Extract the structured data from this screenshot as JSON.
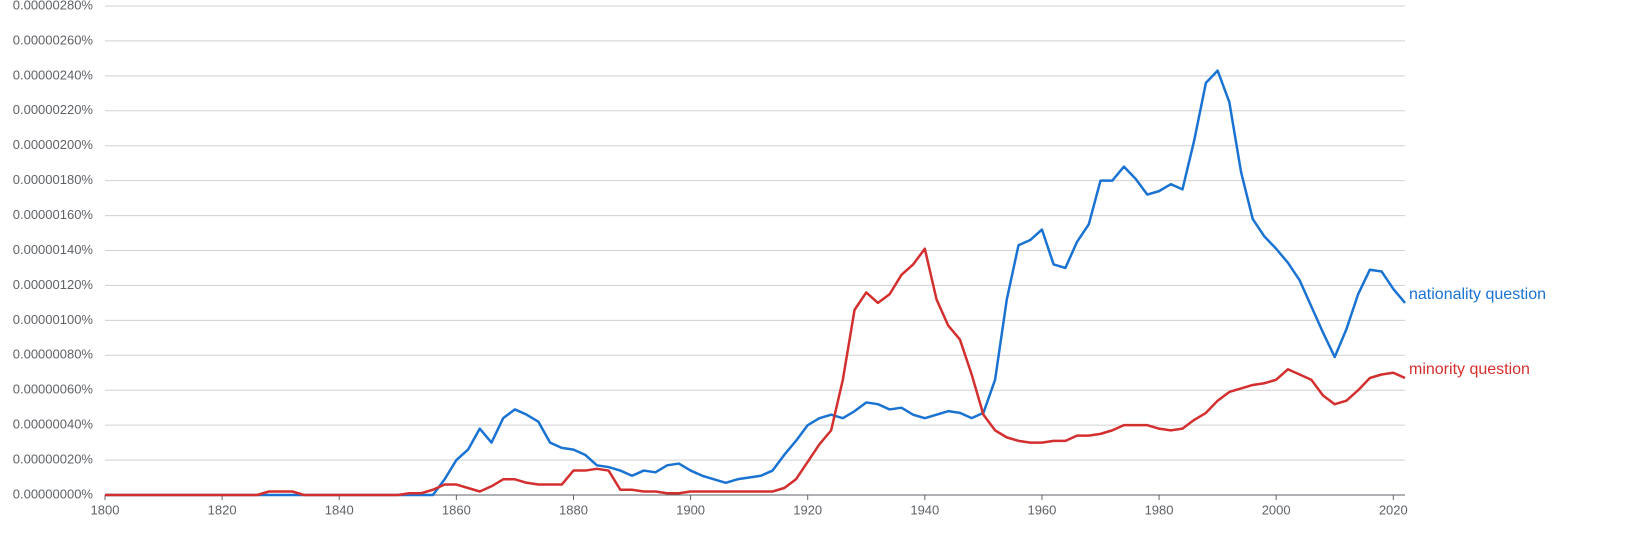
{
  "chart_data": {
    "type": "line",
    "x": [
      1800,
      1802,
      1804,
      1806,
      1808,
      1810,
      1812,
      1814,
      1816,
      1818,
      1820,
      1822,
      1824,
      1826,
      1828,
      1830,
      1832,
      1834,
      1836,
      1838,
      1840,
      1842,
      1844,
      1846,
      1848,
      1850,
      1852,
      1854,
      1856,
      1858,
      1860,
      1862,
      1864,
      1866,
      1868,
      1870,
      1872,
      1874,
      1876,
      1878,
      1880,
      1882,
      1884,
      1886,
      1888,
      1890,
      1892,
      1894,
      1896,
      1898,
      1900,
      1902,
      1904,
      1906,
      1908,
      1910,
      1912,
      1914,
      1916,
      1918,
      1920,
      1922,
      1924,
      1926,
      1928,
      1930,
      1932,
      1934,
      1936,
      1938,
      1940,
      1942,
      1944,
      1946,
      1948,
      1950,
      1952,
      1954,
      1956,
      1958,
      1960,
      1962,
      1964,
      1966,
      1968,
      1970,
      1972,
      1974,
      1976,
      1978,
      1980,
      1982,
      1984,
      1986,
      1988,
      1990,
      1992,
      1994,
      1996,
      1998,
      2000,
      2002,
      2004,
      2006,
      2008,
      2010,
      2012,
      2014,
      2016,
      2018,
      2020,
      2022
    ],
    "series": [
      {
        "name": "nationality question",
        "color": "#1a73d2",
        "values": [
          0,
          0,
          0,
          0,
          0,
          0,
          0,
          0,
          0,
          0,
          0,
          0,
          0,
          0,
          0,
          0,
          0,
          0,
          0,
          0,
          0,
          0,
          0,
          0,
          0,
          0,
          0,
          0,
          0,
          9e-08,
          2e-07,
          2.6e-07,
          3.8e-07,
          3e-07,
          4.4e-07,
          4.9e-07,
          4.6e-07,
          4.2e-07,
          3e-07,
          2.7e-07,
          2.6e-07,
          2.3e-07,
          1.7e-07,
          1.6e-07,
          1.4e-07,
          1.1e-07,
          1.4e-07,
          1.3e-07,
          1.7e-07,
          1.8e-07,
          1.4e-07,
          1.1e-07,
          9e-08,
          7e-08,
          9e-08,
          1e-07,
          1.1e-07,
          1.4e-07,
          2.3e-07,
          3.1e-07,
          4e-07,
          4.4e-07,
          4.6e-07,
          4.4e-07,
          4.8e-07,
          5.3e-07,
          5.2e-07,
          4.9e-07,
          5e-07,
          4.6e-07,
          4.4e-07,
          4.6e-07,
          4.8e-07,
          4.7e-07,
          4.4e-07,
          4.7e-07,
          6.6e-07,
          1.12e-06,
          1.43e-06,
          1.46e-06,
          1.52e-06,
          1.32e-06,
          1.3e-06,
          1.45e-06,
          1.55e-06,
          1.8e-06,
          1.8e-06,
          1.88e-06,
          1.81e-06,
          1.72e-06,
          1.74e-06,
          1.78e-06,
          1.75e-06,
          2.03e-06,
          2.36e-06,
          2.43e-06,
          2.25e-06,
          1.85e-06,
          1.58e-06,
          1.48e-06,
          1.41e-06,
          1.33e-06,
          1.23e-06,
          1.08e-06,
          9.3e-07,
          7.9e-07,
          9.5e-07,
          1.15e-06,
          1.29e-06,
          1.28e-06,
          1.18e-06,
          1.1e-06
        ]
      },
      {
        "name": "minority question",
        "color": "#d32f2f",
        "values": [
          0,
          0,
          0,
          0,
          0,
          0,
          0,
          0,
          0,
          0,
          0,
          0,
          0,
          0,
          2e-08,
          2e-08,
          2e-08,
          0,
          0,
          0,
          0,
          0,
          0,
          0,
          0,
          0,
          1e-08,
          1e-08,
          3e-08,
          6e-08,
          6e-08,
          4e-08,
          2e-08,
          5e-08,
          9e-08,
          9e-08,
          7e-08,
          6e-08,
          6e-08,
          6e-08,
          1.4e-07,
          1.4e-07,
          1.5e-07,
          1.4e-07,
          3e-08,
          3e-08,
          2e-08,
          2e-08,
          1e-08,
          1e-08,
          2e-08,
          2e-08,
          2e-08,
          2e-08,
          2e-08,
          2e-08,
          2e-08,
          2e-08,
          4e-08,
          9e-08,
          1.9e-07,
          2.9e-07,
          3.7e-07,
          6.6e-07,
          1.06e-06,
          1.16e-06,
          1.1e-06,
          1.15e-06,
          1.26e-06,
          1.32e-06,
          1.41e-06,
          1.12e-06,
          9.7e-07,
          8.9e-07,
          6.9e-07,
          4.6e-07,
          3.7e-07,
          3.3e-07,
          3.1e-07,
          3e-07,
          3e-07,
          3.1e-07,
          3.1e-07,
          3.4e-07,
          3.4e-07,
          3.5e-07,
          3.7e-07,
          4e-07,
          4e-07,
          4e-07,
          3.8e-07,
          3.7e-07,
          3.8e-07,
          4.3e-07,
          4.7e-07,
          5.4e-07,
          5.9e-07,
          6.1e-07,
          6.3e-07,
          6.4e-07,
          6.6e-07,
          7.2e-07,
          6.9e-07,
          6.6e-07,
          5.7e-07,
          5.2e-07,
          5.4e-07,
          6e-07,
          6.7e-07,
          6.9e-07,
          7e-07,
          6.7e-07
        ]
      }
    ],
    "xlim": [
      1800,
      2022
    ],
    "xticks": [
      1800,
      1820,
      1840,
      1860,
      1880,
      1900,
      1920,
      1940,
      1960,
      1980,
      2000,
      2020
    ],
    "ylim": [
      0,
      2.8e-06
    ],
    "yticks": [
      {
        "value": 0,
        "label": "0.00000000%"
      },
      {
        "value": 2e-07,
        "label": "0.00000020%"
      },
      {
        "value": 4e-07,
        "label": "0.00000040%"
      },
      {
        "value": 6e-07,
        "label": "0.00000060%"
      },
      {
        "value": 8e-07,
        "label": "0.00000080%"
      },
      {
        "value": 1e-06,
        "label": "0.00000100%"
      },
      {
        "value": 1.2e-06,
        "label": "0.00000120%"
      },
      {
        "value": 1.4e-06,
        "label": "0.00000140%"
      },
      {
        "value": 1.6e-06,
        "label": "0.00000160%"
      },
      {
        "value": 1.8e-06,
        "label": "0.00000180%"
      },
      {
        "value": 2e-06,
        "label": "0.00000200%"
      },
      {
        "value": 2.2e-06,
        "label": "0.00000220%"
      },
      {
        "value": 2.4e-06,
        "label": "0.00000240%"
      },
      {
        "value": 2.6e-06,
        "label": "0.00000260%"
      },
      {
        "value": 2.8e-06,
        "label": "0.00000280%"
      }
    ],
    "grid": true
  }
}
